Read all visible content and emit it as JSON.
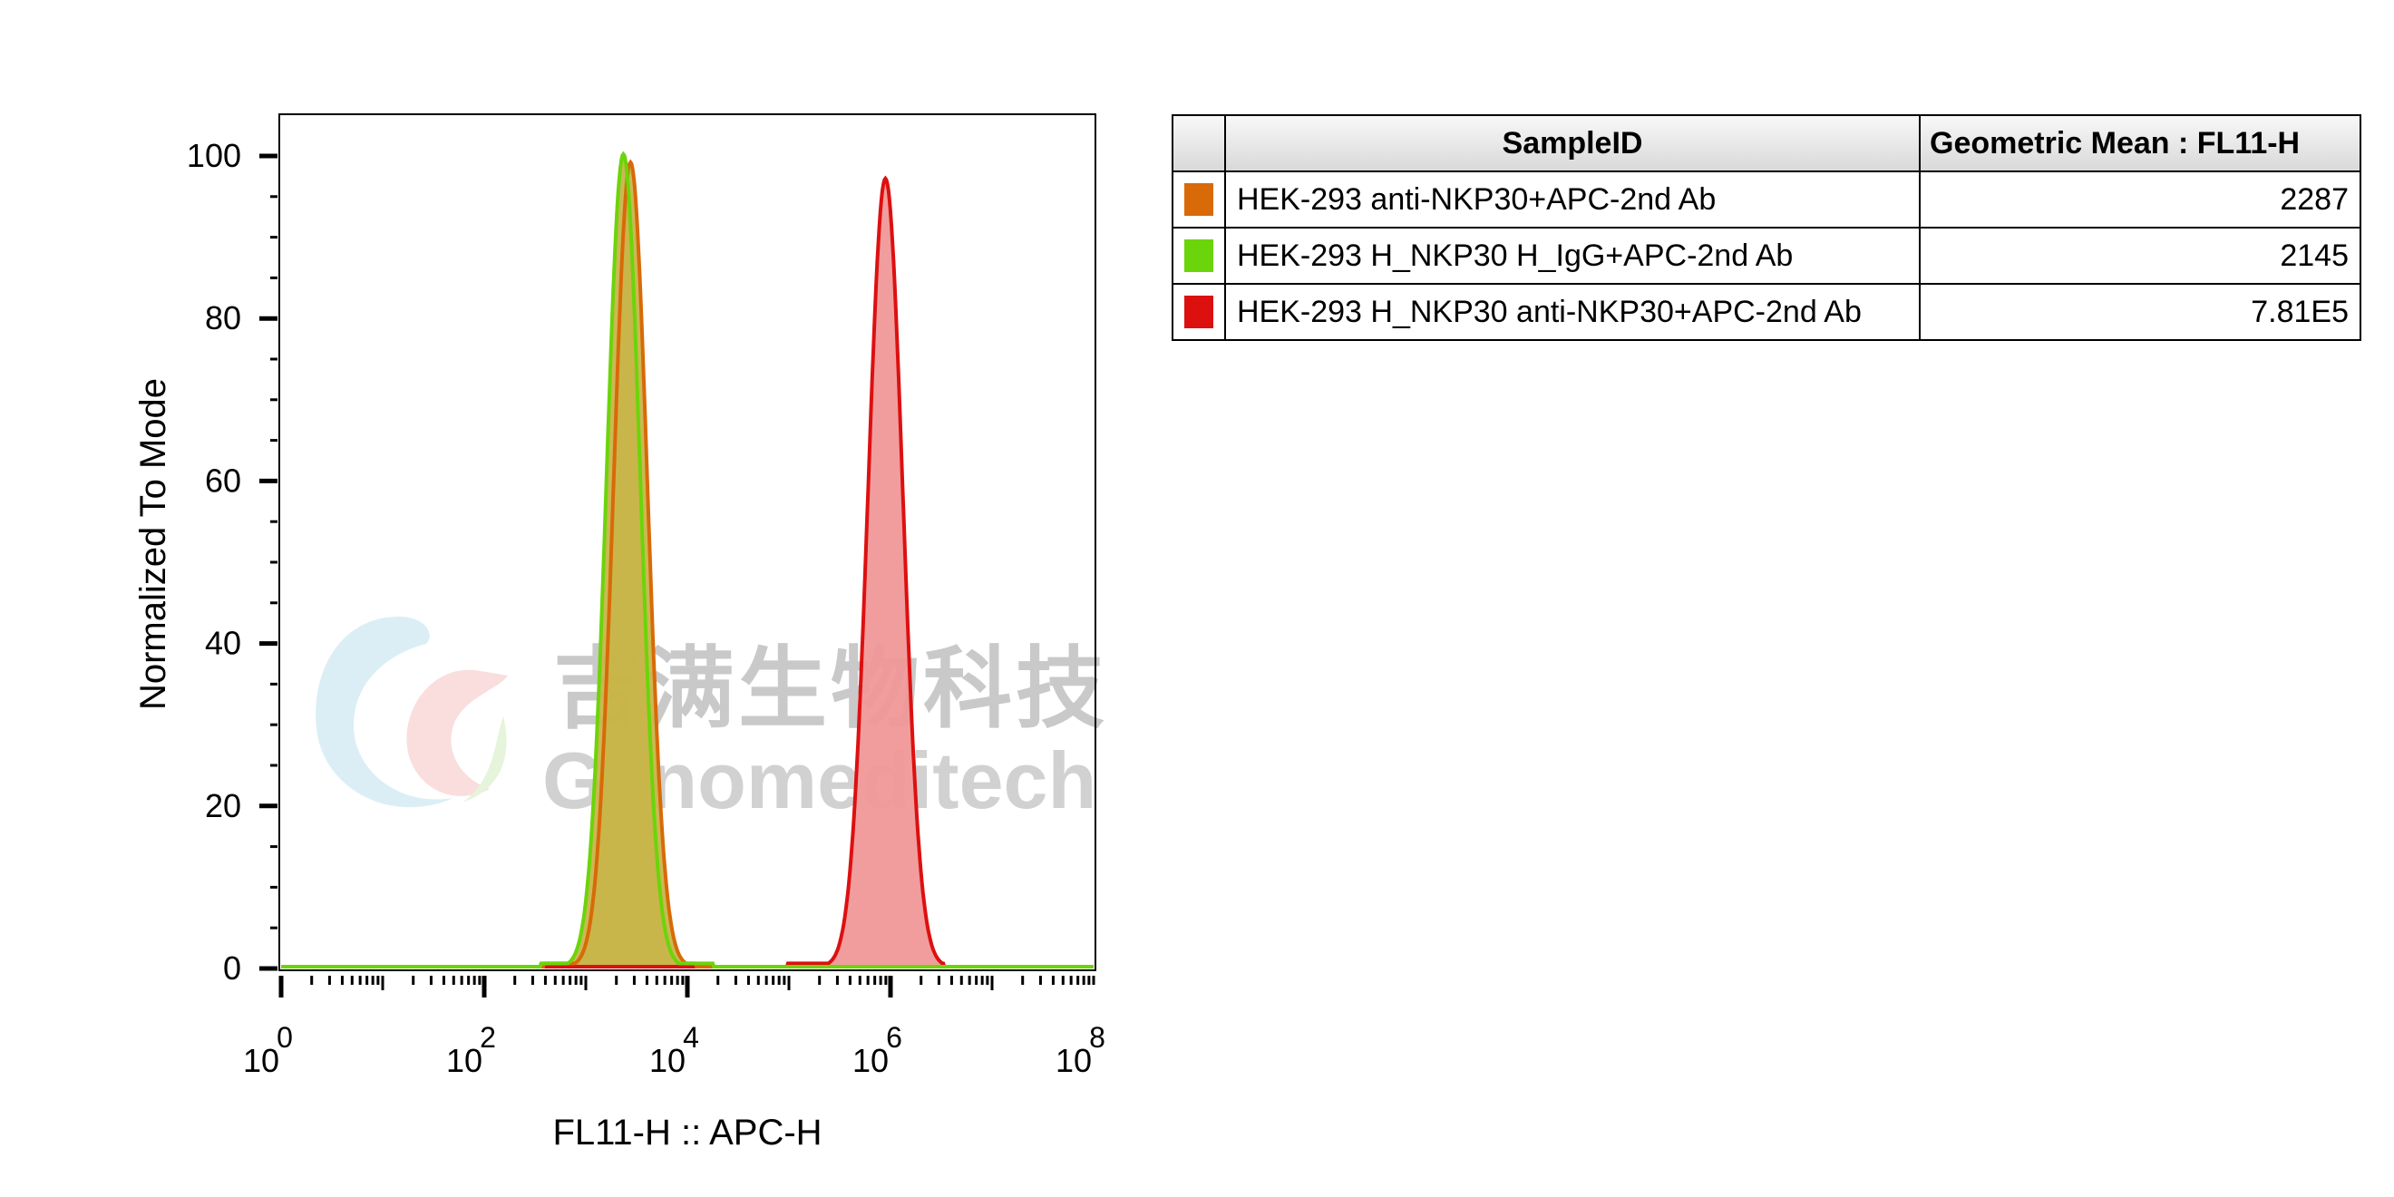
{
  "chart_data": {
    "type": "histogram",
    "xlabel": "FL11-H :: APC-H",
    "ylabel": "Normalized To Mode",
    "xscale": "log",
    "xlim": [
      1,
      100000000
    ],
    "ylim": [
      0,
      105
    ],
    "x_major_ticks": [
      {
        "base": "10",
        "exp": "0",
        "value": 1
      },
      {
        "base": "10",
        "exp": "2",
        "value": 100
      },
      {
        "base": "10",
        "exp": "4",
        "value": 10000
      },
      {
        "base": "10",
        "exp": "6",
        "value": 1000000
      },
      {
        "base": "10",
        "exp": "8",
        "value": 100000000
      }
    ],
    "y_ticks": [
      0,
      20,
      40,
      60,
      80,
      100
    ],
    "series": [
      {
        "name": "HEK-293 anti-NKP30+APC-2nd Ab",
        "color": "#d86a08",
        "fill": "#c8b54a",
        "peak_log10": 3.44,
        "peak_value": 99,
        "width_log10": 0.165,
        "start_log10": 2.58,
        "end_log10": 4.08
      },
      {
        "name": "HEK-293 H_NKP30 H_IgG+APC-2nd Ab",
        "color": "#6cd40a",
        "fill": "#c8b54a",
        "peak_log10": 3.37,
        "peak_value": 100,
        "width_log10": 0.165,
        "start_log10": 2.55,
        "end_log10": 4.25
      },
      {
        "name": "HEK-293 H_NKP30 anti-NKP30+APC-2nd Ab",
        "color": "#dd1010",
        "fill": "#f09898",
        "peak_log10": 5.95,
        "peak_value": 97,
        "width_log10": 0.17,
        "start_log10": 4.98,
        "end_log10": 6.52
      }
    ]
  },
  "table": {
    "headers": [
      "SampleID",
      "Geometric Mean : FL11-H"
    ],
    "rows": [
      {
        "color": "#d86a08",
        "sample": "HEK-293 anti-NKP30+APC-2nd Ab",
        "mean": "2287"
      },
      {
        "color": "#6cd40a",
        "sample": "HEK-293 H_NKP30 H_IgG+APC-2nd Ab",
        "mean": "2145"
      },
      {
        "color": "#dd1010",
        "sample": "HEK-293 H_NKP30 anti-NKP30+APC-2nd Ab",
        "mean": "7.81E5"
      }
    ]
  },
  "watermark": {
    "cn": "吉满生物科技",
    "en": "Genomeditech"
  }
}
